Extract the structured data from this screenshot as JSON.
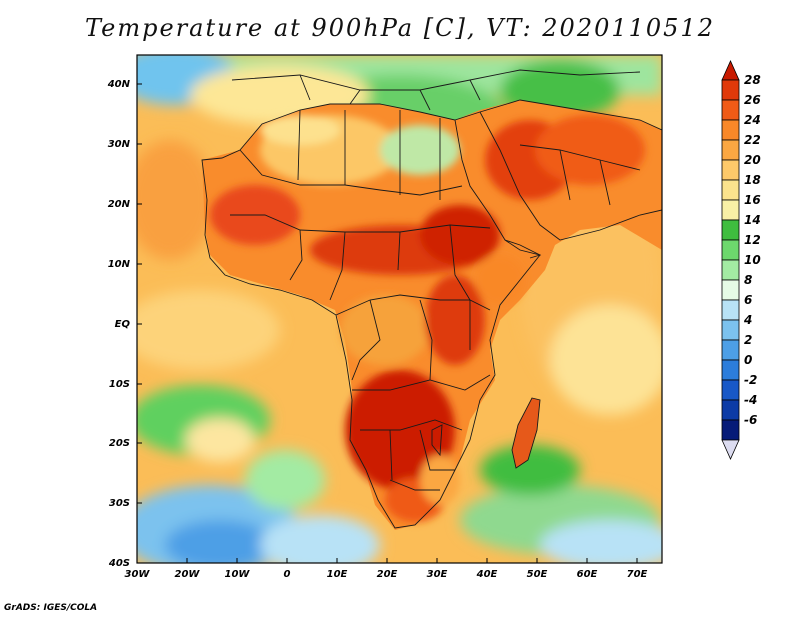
{
  "title": "Temperature at 900hPa [C], VT: 2020110512",
  "credit": "GrADS: IGES/COLA",
  "map": {
    "lat_labels": [
      "40N",
      "30N",
      "20N",
      "10N",
      "EQ",
      "10S",
      "20S",
      "30S",
      "40S"
    ],
    "lon_labels": [
      "30W",
      "20W",
      "10W",
      "0",
      "10E",
      "20E",
      "30E",
      "40E",
      "50E",
      "60E",
      "70E"
    ],
    "extent": {
      "lon_min": -30,
      "lon_max": 75,
      "lat_min": -40,
      "lat_max": 44
    }
  },
  "colorbar": {
    "levels": [
      "28",
      "26",
      "24",
      "22",
      "20",
      "18",
      "16",
      "14",
      "12",
      "10",
      "8",
      "6",
      "4",
      "2",
      "0",
      "-2",
      "-4",
      "-6"
    ],
    "colors": [
      "#c81a00",
      "#e0390a",
      "#f05b17",
      "#f98828",
      "#fba742",
      "#fdc96a",
      "#fbe38d",
      "#f8f0a6",
      "#3fbd3f",
      "#6dd86d",
      "#a3eba3",
      "#e6fbe6",
      "#b8e2f6",
      "#7cc2ee",
      "#4d9fe6",
      "#2c7ddb",
      "#1858c7",
      "#0c3ba6",
      "#061b78",
      "#dcdcf0"
    ]
  }
}
